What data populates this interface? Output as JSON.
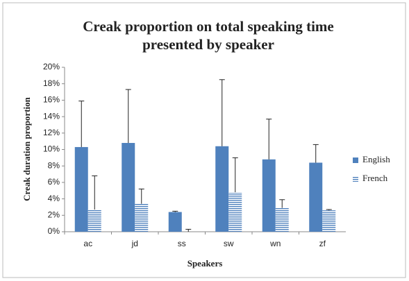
{
  "chart_data": {
    "type": "bar",
    "title": [
      "Creak proportion on total speaking time",
      "presented by speaker"
    ],
    "ylabel": "Creak duration  proportion",
    "xlabel": "Speakers",
    "categories": [
      "ac",
      "jd",
      "ss",
      "sw",
      "wn",
      "zf"
    ],
    "series": [
      {
        "name": "English",
        "color": "#4f81bd",
        "pattern": "solid",
        "values": [
          10.3,
          10.8,
          2.4,
          10.4,
          8.8,
          8.4
        ],
        "errors": [
          5.6,
          6.5,
          0.1,
          8.1,
          4.9,
          2.2
        ]
      },
      {
        "name": "French",
        "color": "#4f81bd",
        "pattern": "horizontal-stripes",
        "values": [
          2.7,
          3.4,
          0,
          4.8,
          2.9,
          2.6
        ],
        "errors": [
          4.1,
          1.8,
          0.3,
          4.2,
          1.0,
          0.1
        ]
      }
    ],
    "ylim": [
      0,
      20
    ],
    "yticks": [
      {
        "value": 0,
        "label": "0%"
      },
      {
        "value": 2,
        "label": "2%"
      },
      {
        "value": 4,
        "label": "4%"
      },
      {
        "value": 6,
        "label": "6%"
      },
      {
        "value": 8,
        "label": "8%"
      },
      {
        "value": 10,
        "label": "10%"
      },
      {
        "value": 12,
        "label": "12%"
      },
      {
        "value": 14,
        "label": "14%"
      },
      {
        "value": 16,
        "label": "16%"
      },
      {
        "value": 18,
        "label": "18%"
      },
      {
        "value": 20,
        "label": "20%"
      }
    ],
    "grid": false,
    "legend": "right"
  }
}
